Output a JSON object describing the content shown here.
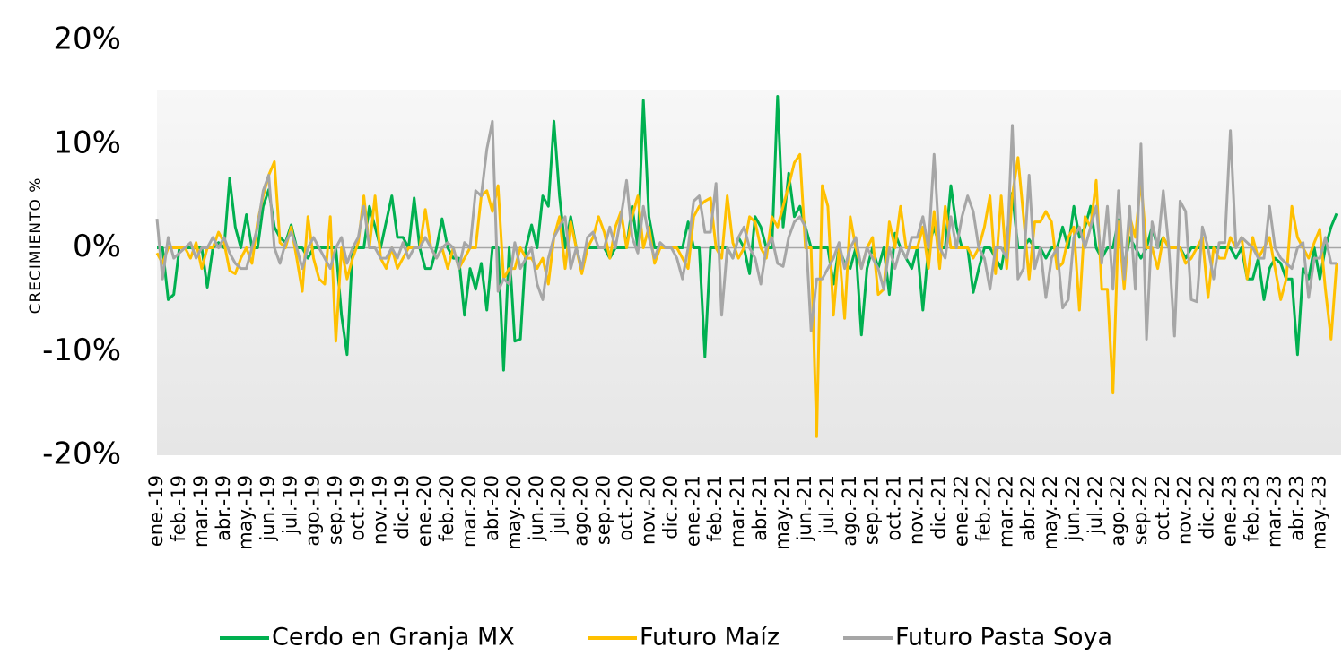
{
  "chart_data": {
    "type": "line",
    "y_axis_label": "CRECIMIENTO %",
    "ylim": [
      -20,
      20
    ],
    "yticks": [
      {
        "value": -20,
        "label": "-20%"
      },
      {
        "value": -10,
        "label": "-10%"
      },
      {
        "value": 0,
        "label": "0%"
      },
      {
        "value": 10,
        "label": "10%"
      },
      {
        "value": 20,
        "label": "20%"
      }
    ],
    "grid": false,
    "legend": "bottom",
    "categories": [
      "ene.-19",
      null,
      null,
      null,
      "feb.-19",
      null,
      null,
      null,
      "mar.-19",
      null,
      null,
      null,
      "abr.-19",
      null,
      null,
      null,
      "may.-19",
      null,
      null,
      null,
      "jun.-19",
      null,
      null,
      null,
      "jul.-19",
      null,
      null,
      null,
      "ago.-19",
      null,
      null,
      null,
      "sep.-19",
      null,
      null,
      null,
      "oct.-19",
      null,
      null,
      null,
      "nov.-19",
      null,
      null,
      null,
      "dic.-19",
      null,
      null,
      null,
      "ene.-20",
      null,
      null,
      null,
      "feb.-20",
      null,
      null,
      null,
      "mar.-20",
      null,
      null,
      null,
      "abr.-20",
      null,
      null,
      null,
      "may.-20",
      null,
      null,
      null,
      "jun.-20",
      null,
      null,
      null,
      "jul.-20",
      null,
      null,
      null,
      "ago.-20",
      null,
      null,
      null,
      "sep.-20",
      null,
      null,
      null,
      "oct.-20",
      null,
      null,
      null,
      "nov.-20",
      null,
      null,
      null,
      "dic.-20",
      null,
      null,
      null,
      "ene.-21",
      null,
      null,
      null,
      "feb.-21",
      null,
      null,
      null,
      "mar.-21",
      null,
      null,
      null,
      "abr.-21",
      null,
      null,
      null,
      "may.-21",
      null,
      null,
      null,
      "jun.-21",
      null,
      null,
      null,
      "jul.-21",
      null,
      null,
      null,
      "ago.-21",
      null,
      null,
      null,
      "sep.-21",
      null,
      null,
      null,
      "oct.-21",
      null,
      null,
      null,
      "nov.-21",
      null,
      null,
      null,
      "dic.-21",
      null,
      null,
      null,
      "ene.-22",
      null,
      null,
      null,
      "feb.-22",
      null,
      null,
      null,
      "mar.-22",
      null,
      null,
      null,
      "abr.-22",
      null,
      null,
      null,
      "may.-22",
      null,
      null,
      null,
      "jun.-22",
      null,
      null,
      null,
      "jul.-22",
      null,
      null,
      null,
      "ago.-22",
      null,
      null,
      null,
      "sep.-22",
      null,
      null,
      null,
      "oct.-22",
      null,
      null,
      null,
      "nov.-22",
      null,
      null,
      null,
      "dic.-22",
      null,
      null,
      null,
      "ene.-23",
      null,
      null,
      null,
      "feb.-23",
      null,
      null,
      null,
      "mar.-23",
      null,
      null,
      null,
      "abr.-23",
      null,
      null,
      null,
      "may.-23",
      null,
      null,
      null
    ],
    "series": [
      {
        "name": "Cerdo en Granja MX",
        "color": "#00b050",
        "values": [
          0,
          0,
          -5,
          -4.5,
          0,
          0,
          0,
          0,
          0,
          -3.8,
          0,
          0.5,
          0,
          6.7,
          2,
          0,
          3.2,
          0,
          0,
          4,
          5.6,
          2,
          1,
          0.5,
          2.2,
          0,
          0,
          -1,
          0,
          0,
          0,
          0,
          0,
          -6.5,
          -10.3,
          0,
          0,
          0,
          4,
          2,
          0,
          2.5,
          5,
          1,
          1,
          0,
          4.8,
          0,
          -2,
          -2,
          0,
          2.8,
          0,
          -1,
          -1,
          -6.5,
          -2,
          -4,
          -1.5,
          -6,
          0,
          0,
          -11.8,
          0,
          -9,
          -8.8,
          0,
          2.2,
          0,
          5,
          4,
          12.2,
          5,
          0,
          3,
          0,
          -2,
          0,
          0,
          0,
          0,
          -1,
          0,
          0,
          0,
          4,
          0,
          14.2,
          3,
          0,
          0,
          0,
          0,
          0,
          0,
          2.5,
          0,
          0,
          -10.5,
          0,
          0,
          0,
          0,
          -1,
          1,
          0,
          -2.5,
          3,
          2,
          0,
          0,
          14.6,
          2,
          7.2,
          3,
          4,
          2,
          0,
          0,
          0,
          0,
          -3.5,
          0,
          -1.5,
          -2,
          0,
          -8.4,
          -2,
          0,
          -2,
          0,
          -4.5,
          1.4,
          0,
          -1,
          -2,
          0,
          -6,
          0,
          2,
          0,
          0,
          6,
          2,
          0,
          0,
          -4.3,
          -2,
          0,
          0,
          -1,
          -2,
          1,
          5.3,
          0,
          0,
          0.8,
          0,
          0,
          -1,
          0,
          0,
          2,
          0,
          4,
          1,
          2,
          4,
          0,
          -1,
          0,
          0,
          2.7,
          -2,
          1,
          0,
          -1,
          0,
          2,
          0,
          1,
          0,
          0,
          0,
          -1,
          0,
          0,
          0,
          0,
          0,
          0,
          0,
          0,
          -1,
          0,
          -3,
          -3,
          -1,
          -5,
          -2,
          -1,
          -1.5,
          -3,
          -3,
          -10.3,
          -2,
          -3,
          0,
          -3,
          0,
          2,
          3.3
        ]
      },
      {
        "name": "Futuro Maíz",
        "color": "#ffc000",
        "values": [
          -0.5,
          -1.5,
          0,
          0,
          0,
          0,
          -1,
          0.5,
          -2,
          0,
          0,
          1.5,
          0.5,
          -2.2,
          -2.5,
          -1,
          0,
          -1.5,
          2.5,
          5,
          7,
          8.3,
          0.5,
          0,
          2,
          -1,
          -4.2,
          3,
          -1,
          -3,
          -3.5,
          3,
          -9,
          0,
          -3,
          -1,
          0.5,
          5,
          0,
          5,
          -1,
          -2,
          0,
          -2,
          -1,
          0,
          0,
          0,
          3.7,
          0,
          -1,
          0,
          -2,
          0,
          -2,
          -1,
          0,
          0,
          5,
          5.5,
          3.5,
          6,
          -3,
          -2,
          -2,
          0,
          -1,
          -1,
          -2,
          -1,
          -3.5,
          1,
          3,
          -2,
          2.5,
          0,
          -2.5,
          0,
          1,
          3,
          1.5,
          -1,
          2,
          3.5,
          0,
          3,
          5,
          0,
          2,
          -1.5,
          0,
          0,
          0,
          0,
          -1,
          -2,
          3,
          4,
          4.5,
          4.8,
          0,
          -1,
          5,
          0.5,
          -1,
          0,
          3,
          2.5,
          0,
          -1,
          3,
          2,
          4,
          6,
          8.2,
          9,
          0,
          0,
          -18.2,
          6,
          4,
          -6.5,
          0,
          -6.8,
          3,
          0,
          -2,
          0,
          1,
          -4.5,
          -4,
          2.5,
          0,
          4,
          0,
          0,
          0,
          2,
          -2,
          3.5,
          -2,
          4,
          0,
          0,
          0,
          0,
          -1,
          0,
          2,
          5,
          -2.5,
          5,
          -2,
          5,
          8.7,
          3,
          -3,
          2.5,
          2.5,
          3.5,
          2.5,
          -2,
          -1.5,
          1,
          2,
          -6,
          3,
          2,
          6.5,
          -4,
          -4,
          -14,
          2.5,
          -4,
          3,
          1,
          6.5,
          0,
          0,
          -2,
          1,
          0,
          0,
          0,
          -1.5,
          -1,
          0,
          1,
          -4.8,
          0,
          -1,
          -1,
          1,
          0,
          1,
          -3,
          1,
          -1,
          0,
          1,
          -2,
          -5,
          -3,
          4,
          1,
          0,
          -1,
          0.5,
          1.8,
          -4,
          -8.8,
          -1.5
        ]
      },
      {
        "name": "Futuro Pasta Soya",
        "color": "#a6a6a6",
        "values": [
          2.8,
          -3,
          1,
          -1,
          -0.5,
          0,
          0.5,
          -1,
          0,
          0,
          1,
          0,
          1,
          -0.5,
          -1.5,
          -2,
          -2,
          0,
          2,
          5.5,
          7,
          0,
          -1.5,
          0.5,
          1.5,
          0,
          -2,
          0,
          1,
          0,
          -1,
          -2,
          0,
          1,
          -1.5,
          0,
          1,
          4,
          0,
          0,
          -1,
          -1,
          0,
          -1,
          0.5,
          -1,
          0,
          0,
          1,
          0,
          -1,
          0,
          0.5,
          0,
          -2,
          0.5,
          0,
          5.5,
          5,
          9.5,
          12.2,
          -4.2,
          -3,
          -3.5,
          0.5,
          -2,
          -1,
          0,
          -3.5,
          -5,
          -1,
          1,
          2,
          3,
          -2,
          0,
          -2,
          1,
          1.5,
          0,
          0,
          2,
          0,
          3,
          6.5,
          1,
          -0.5,
          4,
          1,
          -1,
          0.5,
          0,
          0,
          -1,
          -3,
          0,
          4.5,
          5,
          1.5,
          1.5,
          6.2,
          -6.5,
          0,
          -1,
          1,
          2,
          0,
          -1,
          -3.5,
          0,
          1,
          -1.5,
          -1.8,
          1,
          2.5,
          3,
          2,
          -8,
          -3,
          -3,
          -2,
          -1,
          0.5,
          -2,
          0,
          1,
          -2,
          0,
          -1,
          -2,
          -4,
          0,
          -2,
          0,
          -1,
          1,
          1,
          3,
          0,
          9,
          0,
          -1,
          3,
          0,
          3,
          5,
          3.5,
          0,
          -1,
          -4,
          0,
          0,
          -1,
          11.8,
          -3,
          -2,
          7,
          -2,
          0,
          -4.8,
          -1,
          0,
          -5.8,
          -5,
          1,
          2,
          0,
          2,
          4,
          -1.5,
          4,
          -4,
          5.5,
          -3,
          4,
          -4,
          10,
          -8.8,
          2.5,
          0,
          5.5,
          0,
          -8.5,
          4.5,
          3.5,
          -5,
          -5.2,
          2,
          0,
          -3,
          0.5,
          0.5,
          11.3,
          0,
          1,
          0.5,
          0,
          -1,
          -1,
          4,
          0,
          -1,
          -1.5,
          -2,
          0,
          0.5,
          -4.8,
          -1,
          -1,
          1,
          -1.5,
          -1.5
        ]
      }
    ]
  }
}
